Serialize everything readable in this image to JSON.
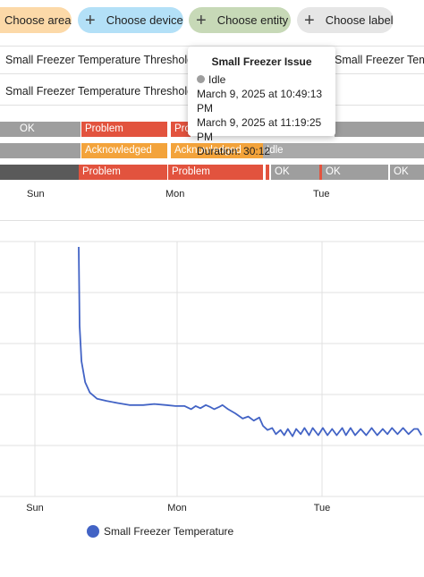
{
  "filters": {
    "area": "Choose area",
    "device": "Choose device",
    "entity": "Choose entity",
    "label": "Choose label",
    "plus_glyph": "+"
  },
  "entities": [
    "Small Freezer Temperature Threshold Re",
    "Small Freezer Temperature Threshold Re",
    "Small Freezer Tempe"
  ],
  "timeline": {
    "row1": [
      {
        "label": "OK",
        "state": "ok"
      },
      {
        "label": "Problem",
        "state": "problem"
      },
      {
        "label": "Pro",
        "state": "problem"
      },
      {
        "label": "",
        "state": "ok"
      }
    ],
    "row2": [
      {
        "label": "",
        "state": "ok"
      },
      {
        "label": "Acknowledged",
        "state": "ack"
      },
      {
        "label": "Acknowledged",
        "state": "ack"
      },
      {
        "label": "Idle",
        "state": "idle"
      }
    ],
    "row3": [
      {
        "label": "",
        "state": "dark"
      },
      {
        "label": "Problem",
        "state": "problem"
      },
      {
        "label": "Problem",
        "state": "problem"
      },
      {
        "label": "OK",
        "state": "ok"
      },
      {
        "label": "OK",
        "state": "ok"
      },
      {
        "label": "OK",
        "state": "ok"
      }
    ],
    "axis": [
      "Sun",
      "Mon",
      "Tue"
    ]
  },
  "tooltip": {
    "title": "Small Freezer Issue",
    "state": "Idle",
    "start": "March 9, 2025 at 10:49:13 PM",
    "end": "March 9, 2025 at 11:19:25 PM",
    "duration": "Duration: 30:12"
  },
  "chart_data": {
    "type": "line",
    "x_ticks": [
      "Sun",
      "Mon",
      "Tue"
    ],
    "series": [
      {
        "name": "Small Freezer Temperature",
        "color": "#4263c5",
        "points": [
          [
            0.0,
            100
          ],
          [
            0.01,
            62
          ],
          [
            0.03,
            45
          ],
          [
            0.07,
            35
          ],
          [
            0.12,
            30
          ],
          [
            0.2,
            27
          ],
          [
            0.3,
            26
          ],
          [
            0.42,
            25
          ],
          [
            0.55,
            24
          ],
          [
            0.7,
            24
          ],
          [
            0.82,
            24.5
          ],
          [
            0.95,
            24
          ],
          [
            1.05,
            23.5
          ],
          [
            1.15,
            23.5
          ],
          [
            1.22,
            22
          ],
          [
            1.27,
            23.5
          ],
          [
            1.32,
            22.5
          ],
          [
            1.38,
            24
          ],
          [
            1.43,
            23
          ],
          [
            1.47,
            22
          ],
          [
            1.52,
            23
          ],
          [
            1.56,
            24
          ],
          [
            1.62,
            22
          ],
          [
            1.7,
            20
          ],
          [
            1.78,
            17.5
          ],
          [
            1.84,
            18.5
          ],
          [
            1.9,
            16.5
          ],
          [
            1.96,
            18
          ],
          [
            2.0,
            14
          ],
          [
            2.05,
            12
          ],
          [
            2.1,
            13
          ],
          [
            2.14,
            10
          ],
          [
            2.19,
            12
          ],
          [
            2.23,
            9.5
          ],
          [
            2.27,
            12.5
          ],
          [
            2.32,
            9
          ],
          [
            2.36,
            12.5
          ],
          [
            2.41,
            10
          ],
          [
            2.45,
            13
          ],
          [
            2.5,
            9.5
          ],
          [
            2.54,
            13
          ],
          [
            2.6,
            9.5
          ],
          [
            2.65,
            13
          ],
          [
            2.7,
            9.5
          ],
          [
            2.75,
            12.5
          ],
          [
            2.8,
            9.5
          ],
          [
            2.86,
            13
          ],
          [
            2.9,
            9.5
          ],
          [
            2.95,
            13
          ],
          [
            3.0,
            9.5
          ],
          [
            3.06,
            12.5
          ],
          [
            3.12,
            9.5
          ],
          [
            3.18,
            13
          ],
          [
            3.24,
            9.5
          ],
          [
            3.3,
            12.5
          ],
          [
            3.35,
            10
          ],
          [
            3.4,
            13
          ],
          [
            3.46,
            10
          ],
          [
            3.52,
            13
          ],
          [
            3.58,
            10
          ],
          [
            3.64,
            12.5
          ],
          [
            3.68,
            12.5
          ],
          [
            3.72,
            9.5
          ]
        ]
      }
    ],
    "grid": true,
    "legend_position": "bottom-left"
  }
}
